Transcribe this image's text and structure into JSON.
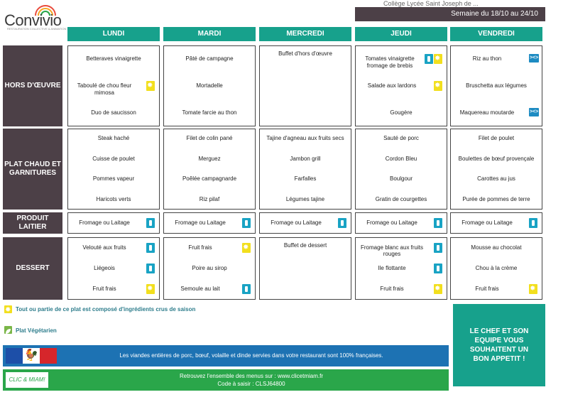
{
  "brand": {
    "name": "Convivio",
    "tagline": "RESTAURATION COLLECTIVE & ANIMATION SOCIALE"
  },
  "header": {
    "top_clipped_text": "Collège Lycée Saint Joseph de ...",
    "week": "Semaine du 18/10 au 24/10"
  },
  "days": [
    "LUNDI",
    "MARDI",
    "MERCREDI",
    "JEUDI",
    "VENDREDI"
  ],
  "sections": [
    {
      "label": "HORS D'ŒUVRE",
      "days": [
        {
          "dishes": [
            {
              "name": "Betteraves vinaigrette",
              "icons": []
            },
            {
              "name": "Taboulé de chou fleur mimosa",
              "icons": [
                "seasonal"
              ]
            },
            {
              "name": "Duo de saucisson",
              "icons": []
            }
          ]
        },
        {
          "dishes": [
            {
              "name": "Pâté de campagne",
              "icons": []
            },
            {
              "name": "Mortadelle",
              "icons": []
            },
            {
              "name": "Tomate farcie au thon",
              "icons": []
            }
          ]
        },
        {
          "dishes": [
            {
              "name": "Buffet d'hors d'œuvre",
              "icons": []
            }
          ]
        },
        {
          "dishes": [
            {
              "name": "Tomates vinaigrette fromage de brebis",
              "icons": [
                "dairy",
                "seasonal"
              ]
            },
            {
              "name": "Salade aux lardons",
              "icons": [
                "seasonal"
              ]
            },
            {
              "name": "Gougère",
              "icons": []
            }
          ]
        },
        {
          "dishes": [
            {
              "name": "Riz au thon",
              "icons": [
                "fish"
              ]
            },
            {
              "name": "Bruschetta aux légumes",
              "icons": []
            },
            {
              "name": "Maquereau moutarde",
              "icons": [
                "fish"
              ]
            }
          ]
        }
      ]
    },
    {
      "label": "PLAT CHAUD ET GARNITURES",
      "days": [
        {
          "dishes": [
            {
              "name": "Steak haché",
              "icons": []
            },
            {
              "name": "Cuisse de poulet",
              "icons": []
            },
            {
              "name": "Pommes vapeur",
              "icons": []
            },
            {
              "name": "Haricots verts",
              "icons": []
            }
          ]
        },
        {
          "dishes": [
            {
              "name": "Filet de colin pané",
              "icons": []
            },
            {
              "name": "Merguez",
              "icons": []
            },
            {
              "name": "Poêlée campagnarde",
              "icons": []
            },
            {
              "name": "Riz pilaf",
              "icons": []
            }
          ]
        },
        {
          "dishes": [
            {
              "name": "Tajine d'agneau aux fruits secs",
              "icons": []
            },
            {
              "name": "Jambon grill",
              "icons": []
            },
            {
              "name": "Farfalles",
              "icons": []
            },
            {
              "name": "Légumes tajine",
              "icons": []
            }
          ]
        },
        {
          "dishes": [
            {
              "name": "Sauté de porc",
              "icons": []
            },
            {
              "name": "Cordon Bleu",
              "icons": []
            },
            {
              "name": "Boulgour",
              "icons": []
            },
            {
              "name": "Gratin de courgettes",
              "icons": []
            }
          ]
        },
        {
          "dishes": [
            {
              "name": "Filet de poulet",
              "icons": []
            },
            {
              "name": "Boulettes de bœuf provençale",
              "icons": []
            },
            {
              "name": "Carottes au jus",
              "icons": []
            },
            {
              "name": "Purée de pommes de terre",
              "icons": []
            }
          ]
        }
      ]
    },
    {
      "label": "PRODUIT LAITIER",
      "days": [
        {
          "dishes": [
            {
              "name": "Fromage ou Laitage",
              "icons": [
                "dairy"
              ]
            }
          ]
        },
        {
          "dishes": [
            {
              "name": "Fromage ou Laitage",
              "icons": [
                "dairy"
              ]
            }
          ]
        },
        {
          "dishes": [
            {
              "name": "Fromage ou Laitage",
              "icons": [
                "dairy"
              ]
            }
          ]
        },
        {
          "dishes": [
            {
              "name": "Fromage ou Laitage",
              "icons": [
                "dairy"
              ]
            }
          ]
        },
        {
          "dishes": [
            {
              "name": "Fromage ou Laitage",
              "icons": [
                "dairy"
              ]
            }
          ]
        }
      ]
    },
    {
      "label": "DESSERT",
      "days": [
        {
          "dishes": [
            {
              "name": "Velouté aux fruits",
              "icons": [
                "dairy"
              ]
            },
            {
              "name": "Liégeois",
              "icons": [
                "dairy"
              ]
            },
            {
              "name": "Fruit frais",
              "icons": [
                "seasonal"
              ]
            }
          ]
        },
        {
          "dishes": [
            {
              "name": "Fruit frais",
              "icons": [
                "seasonal"
              ]
            },
            {
              "name": "Poire au sirop",
              "icons": []
            },
            {
              "name": "Semoule au lait",
              "icons": [
                "dairy"
              ]
            }
          ]
        },
        {
          "dishes": [
            {
              "name": "Buffet de dessert",
              "icons": []
            }
          ]
        },
        {
          "dishes": [
            {
              "name": "Fromage blanc aux fruits rouges",
              "icons": [
                "dairy"
              ]
            },
            {
              "name": "Ile flottante",
              "icons": [
                "dairy"
              ]
            },
            {
              "name": "Fruit frais",
              "icons": [
                "seasonal"
              ]
            }
          ]
        },
        {
          "dishes": [
            {
              "name": "Mousse au chocolat",
              "icons": []
            },
            {
              "name": "Chou à la crème",
              "icons": []
            },
            {
              "name": "Fruit frais",
              "icons": [
                "seasonal"
              ]
            }
          ]
        }
      ]
    }
  ],
  "legend": {
    "seasonal": "Tout ou partie de ce plat est composé d'ingrédients crus de saison",
    "vegetarian": "Plat Végétarien"
  },
  "banner_meat": "Les viandes entières de porc, bœuf, volaille et dinde servies dans votre restaurant sont 100% françaises.",
  "banner_site_line1": "Retrouvez l'ensemble des menus sur : www.clicetmiam.fr",
  "banner_site_line2": "Code à saisir : CLSJ64800",
  "clic_logo": "CLIC & MIAM!",
  "chef_message": "LE CHEF ET SON EQUIPE VOUS SOUHAITENT UN BON APPETIT !",
  "colors": {
    "teal": "#17a18c",
    "dark": "#4c4047",
    "blue_banner": "#1d72b3",
    "green_banner": "#2aa64a",
    "seasonal": "#f2df1e",
    "dairy": "#19a3c4"
  }
}
